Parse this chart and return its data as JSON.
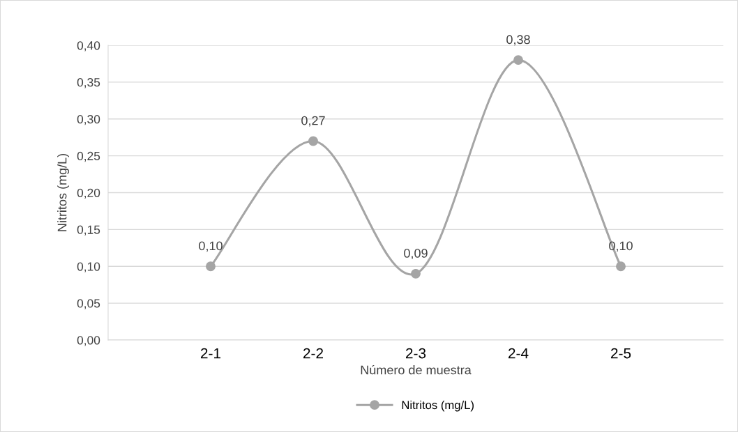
{
  "chart_data": {
    "type": "line",
    "xlabel": "Número de muestra",
    "ylabel": "Nitritos (mg/L)",
    "categories": [
      "2-1",
      "2-2",
      "2-3",
      "2-4",
      "2-5"
    ],
    "series": [
      {
        "name": "Nitritos (mg/L)",
        "color": "#a5a5a5",
        "values": [
          0.1,
          0.27,
          0.09,
          0.38,
          0.1
        ],
        "value_labels": [
          "0,10",
          "0,27",
          "0,09",
          "0,38",
          "0,10"
        ]
      }
    ],
    "ylim": [
      0,
      0.4
    ],
    "yticks": [
      {
        "value": 0,
        "label": "0,00"
      },
      {
        "value": 0.05,
        "label": "0,05"
      },
      {
        "value": 0.1,
        "label": "0,10"
      },
      {
        "value": 0.15,
        "label": "0,15"
      },
      {
        "value": 0.2,
        "label": "0,20"
      },
      {
        "value": 0.25,
        "label": "0,25"
      },
      {
        "value": 0.3,
        "label": "0,30"
      },
      {
        "value": 0.35,
        "label": "0,35"
      },
      {
        "value": 0.4,
        "label": "0,40"
      }
    ],
    "grid": "y",
    "legend": "bottom",
    "marker": "circle",
    "line_style": "solid"
  }
}
